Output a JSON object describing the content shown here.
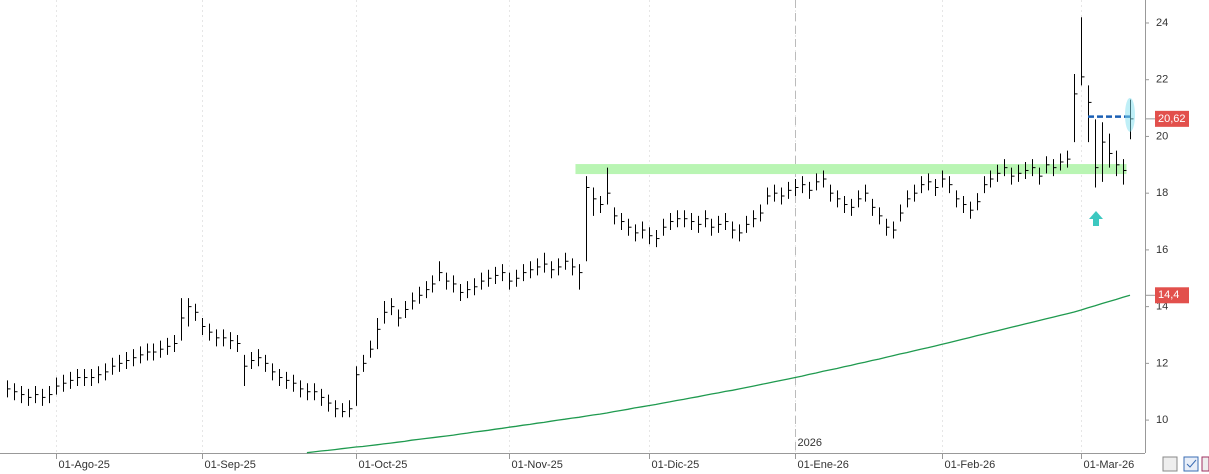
{
  "chart_data": {
    "type": "ohlc",
    "categories": [
      null,
      null,
      null,
      null,
      null,
      null,
      null,
      "01-Ago-25",
      null,
      null,
      null,
      null,
      null,
      null,
      null,
      null,
      null,
      null,
      null,
      null,
      null,
      null,
      null,
      null,
      null,
      null,
      null,
      null,
      "01-Sep-25",
      null,
      null,
      null,
      null,
      null,
      null,
      null,
      null,
      null,
      null,
      null,
      null,
      null,
      null,
      null,
      null,
      null,
      null,
      null,
      null,
      null,
      "01-Oct-25",
      null,
      null,
      null,
      null,
      null,
      null,
      null,
      null,
      null,
      null,
      null,
      null,
      null,
      null,
      null,
      null,
      null,
      null,
      null,
      null,
      null,
      "01-Nov-25",
      null,
      null,
      null,
      null,
      null,
      null,
      null,
      null,
      null,
      null,
      null,
      null,
      null,
      null,
      null,
      null,
      null,
      null,
      null,
      "01-Dic-25",
      null,
      null,
      null,
      null,
      null,
      null,
      null,
      null,
      null,
      null,
      null,
      null,
      null,
      null,
      null,
      null,
      null,
      null,
      null,
      null,
      "01-Ene-26",
      null,
      null,
      null,
      null,
      null,
      null,
      null,
      null,
      null,
      null,
      null,
      null,
      null,
      null,
      null,
      null,
      null,
      null,
      null,
      null,
      "01-Feb-26",
      null,
      null,
      null,
      null,
      null,
      null,
      null,
      null,
      null,
      null,
      null,
      null,
      null,
      null,
      null,
      null,
      null,
      null,
      null,
      "01-Mar-26",
      null,
      null,
      null,
      null,
      null,
      null,
      null
    ],
    "high": [
      11.4,
      11.3,
      11.2,
      11.1,
      11.2,
      11.1,
      11.2,
      11.5,
      11.6,
      11.7,
      11.8,
      11.8,
      11.8,
      11.9,
      12.0,
      12.2,
      12.3,
      12.4,
      12.5,
      12.6,
      12.7,
      12.7,
      12.8,
      12.9,
      13.0,
      14.3,
      14.3,
      14.1,
      13.6,
      13.4,
      13.2,
      13.2,
      13.1,
      13.0,
      12.3,
      12.4,
      12.5,
      12.3,
      12.0,
      11.8,
      11.7,
      11.6,
      11.4,
      11.3,
      11.3,
      11.1,
      10.9,
      10.7,
      10.6,
      10.7,
      11.9,
      12.3,
      12.8,
      13.6,
      14.2,
      14.3,
      13.9,
      14.2,
      14.5,
      14.7,
      14.9,
      15.1,
      15.6,
      15.2,
      15.1,
      14.8,
      14.9,
      15.0,
      15.2,
      15.3,
      15.4,
      15.5,
      15.2,
      15.3,
      15.5,
      15.6,
      15.7,
      15.9,
      15.6,
      15.7,
      15.9,
      15.7,
      15.5,
      18.6,
      18.2,
      17.9,
      18.9,
      17.5,
      17.3,
      17.1,
      16.9,
      17.0,
      16.8,
      16.7,
      17.1,
      17.3,
      17.4,
      17.4,
      17.3,
      17.2,
      17.4,
      17.1,
      17.2,
      17.3,
      17.0,
      16.9,
      17.2,
      17.4,
      17.6,
      18.2,
      18.3,
      18.2,
      18.4,
      18.5,
      18.6,
      18.4,
      18.7,
      18.8,
      18.3,
      18.1,
      17.9,
      17.8,
      18.1,
      18.3,
      17.8,
      17.5,
      17.1,
      17.0,
      17.6,
      18.1,
      18.3,
      18.6,
      18.7,
      18.5,
      18.8,
      18.6,
      18.1,
      17.9,
      17.7,
      18.0,
      18.6,
      18.8,
      19.0,
      19.2,
      18.9,
      19.0,
      19.1,
      19.2,
      18.9,
      19.3,
      19.2,
      19.4,
      19.5,
      22.2,
      24.2,
      21.8,
      20.6,
      20.5,
      20.1,
      19.5,
      19.2,
      21.3
    ],
    "low": [
      10.8,
      10.7,
      10.6,
      10.5,
      10.6,
      10.5,
      10.6,
      10.9,
      11.0,
      11.1,
      11.2,
      11.2,
      11.2,
      11.3,
      11.4,
      11.6,
      11.7,
      11.8,
      11.9,
      12.0,
      12.1,
      12.1,
      12.2,
      12.3,
      12.4,
      12.8,
      13.3,
      13.5,
      13.0,
      12.8,
      12.6,
      12.6,
      12.5,
      12.4,
      11.2,
      11.8,
      11.9,
      11.7,
      11.4,
      11.2,
      11.1,
      11.0,
      10.8,
      10.7,
      10.7,
      10.5,
      10.3,
      10.1,
      10.1,
      10.1,
      10.5,
      11.7,
      12.2,
      12.5,
      13.4,
      13.7,
      13.3,
      13.6,
      13.9,
      14.1,
      14.3,
      14.5,
      14.9,
      14.6,
      14.5,
      14.2,
      14.3,
      14.4,
      14.6,
      14.7,
      14.8,
      14.9,
      14.6,
      14.7,
      14.9,
      15.0,
      15.1,
      15.2,
      15.0,
      15.1,
      15.3,
      15.1,
      14.6,
      15.6,
      17.2,
      17.3,
      17.6,
      16.9,
      16.7,
      16.5,
      16.3,
      16.4,
      16.2,
      16.1,
      16.5,
      16.7,
      16.8,
      16.8,
      16.7,
      16.6,
      16.8,
      16.5,
      16.6,
      16.7,
      16.4,
      16.3,
      16.6,
      16.8,
      17.0,
      17.6,
      17.7,
      17.6,
      17.8,
      17.9,
      18.0,
      17.8,
      18.1,
      18.2,
      17.7,
      17.5,
      17.3,
      17.2,
      17.5,
      17.7,
      17.2,
      16.9,
      16.5,
      16.4,
      17.0,
      17.5,
      17.7,
      18.0,
      18.1,
      17.9,
      18.2,
      18.0,
      17.5,
      17.3,
      17.1,
      17.4,
      18.0,
      18.2,
      18.4,
      18.6,
      18.3,
      18.4,
      18.5,
      18.6,
      18.3,
      18.7,
      18.6,
      18.8,
      18.9,
      19.8,
      21.8,
      19.8,
      18.2,
      18.4,
      18.9,
      18.6,
      18.3,
      19.9
    ],
    "close": [
      11.1,
      11.0,
      10.9,
      10.8,
      10.9,
      10.8,
      10.9,
      11.2,
      11.3,
      11.4,
      11.5,
      11.5,
      11.5,
      11.6,
      11.7,
      11.9,
      12.0,
      12.1,
      12.2,
      12.3,
      12.4,
      12.4,
      12.5,
      12.6,
      12.7,
      13.6,
      14.0,
      13.8,
      13.3,
      13.1,
      12.9,
      12.9,
      12.8,
      12.7,
      11.9,
      12.1,
      12.2,
      12.0,
      11.7,
      11.5,
      11.4,
      11.3,
      11.1,
      11.0,
      11.0,
      10.8,
      10.6,
      10.4,
      10.3,
      10.4,
      11.6,
      12.0,
      12.5,
      13.2,
      13.8,
      14.0,
      13.6,
      13.9,
      14.2,
      14.4,
      14.6,
      14.8,
      15.2,
      14.9,
      14.8,
      14.5,
      14.6,
      14.7,
      14.9,
      15.0,
      15.1,
      15.2,
      14.9,
      15.0,
      15.2,
      15.3,
      15.4,
      15.5,
      15.3,
      15.4,
      15.6,
      15.4,
      15.2,
      18.2,
      17.8,
      17.6,
      18.0,
      17.2,
      17.0,
      16.8,
      16.6,
      16.7,
      16.5,
      16.4,
      16.8,
      17.0,
      17.1,
      17.1,
      17.0,
      16.9,
      17.1,
      16.8,
      16.9,
      17.0,
      16.7,
      16.6,
      16.9,
      17.1,
      17.3,
      17.9,
      18.0,
      17.9,
      18.1,
      18.2,
      18.3,
      18.1,
      18.4,
      18.5,
      18.0,
      17.8,
      17.6,
      17.5,
      17.8,
      18.0,
      17.5,
      17.2,
      16.8,
      16.7,
      17.3,
      17.8,
      18.0,
      18.3,
      18.4,
      18.2,
      18.5,
      18.3,
      17.8,
      17.6,
      17.4,
      17.7,
      18.3,
      18.5,
      18.7,
      18.9,
      18.6,
      18.7,
      18.8,
      18.9,
      18.6,
      19.0,
      18.9,
      19.1,
      19.2,
      21.5,
      22.1,
      21.2,
      18.9,
      19.8,
      19.4,
      19.0,
      18.8,
      20.62
    ],
    "color": "#000000",
    "ma": {
      "color": "#1f9a4f",
      "values": [
        null,
        null,
        null,
        null,
        null,
        null,
        null,
        null,
        null,
        null,
        null,
        null,
        null,
        null,
        null,
        null,
        null,
        null,
        null,
        null,
        null,
        null,
        null,
        null,
        null,
        null,
        null,
        null,
        null,
        null,
        null,
        null,
        null,
        null,
        null,
        null,
        null,
        null,
        null,
        null,
        null,
        null,
        null,
        8.85,
        8.88,
        8.91,
        8.93,
        8.96,
        8.99,
        9.02,
        9.05,
        9.07,
        9.1,
        9.13,
        9.16,
        9.19,
        9.22,
        9.25,
        9.29,
        9.32,
        9.35,
        9.38,
        9.41,
        9.44,
        9.47,
        9.51,
        9.54,
        9.58,
        9.61,
        9.64,
        9.68,
        9.71,
        9.75,
        9.78,
        9.82,
        9.85,
        9.89,
        9.92,
        9.96,
        10.0,
        10.03,
        10.07,
        10.1,
        10.14,
        10.18,
        10.21,
        10.25,
        10.3,
        10.34,
        10.38,
        10.43,
        10.47,
        10.51,
        10.55,
        10.6,
        10.64,
        10.69,
        10.73,
        10.78,
        10.82,
        10.87,
        10.92,
        10.96,
        11.01,
        11.05,
        11.1,
        11.15,
        11.2,
        11.25,
        11.3,
        11.35,
        11.4,
        11.45,
        11.5,
        11.55,
        11.61,
        11.66,
        11.72,
        11.77,
        11.82,
        11.88,
        11.93,
        11.99,
        12.04,
        12.1,
        12.15,
        12.21,
        12.27,
        12.33,
        12.38,
        12.44,
        12.5,
        12.55,
        12.61,
        12.67,
        12.73,
        12.79,
        12.85,
        12.91,
        12.97,
        13.03,
        13.09,
        13.15,
        13.21,
        13.27,
        13.33,
        13.39,
        13.45,
        13.51,
        13.57,
        13.63,
        13.69,
        13.75,
        13.81,
        13.88,
        13.96,
        14.03,
        14.11,
        14.18,
        14.25,
        14.33,
        14.4
      ]
    },
    "ylim": [
      8.84,
      24.81
    ],
    "yticks": [
      10,
      12,
      14,
      16,
      18,
      20,
      22,
      24
    ],
    "year_label": "2026",
    "support_zone": {
      "value": 18.85,
      "color": "#b9f5b3"
    },
    "resistance_line": {
      "value": 20.7,
      "color": "#1a5fb4"
    },
    "price_markers": [
      {
        "value": 20.62,
        "label": "20,62",
        "color": "#e2504c"
      },
      {
        "value": 14.4,
        "label": "14,4",
        "color": "#e2504c"
      }
    ]
  }
}
